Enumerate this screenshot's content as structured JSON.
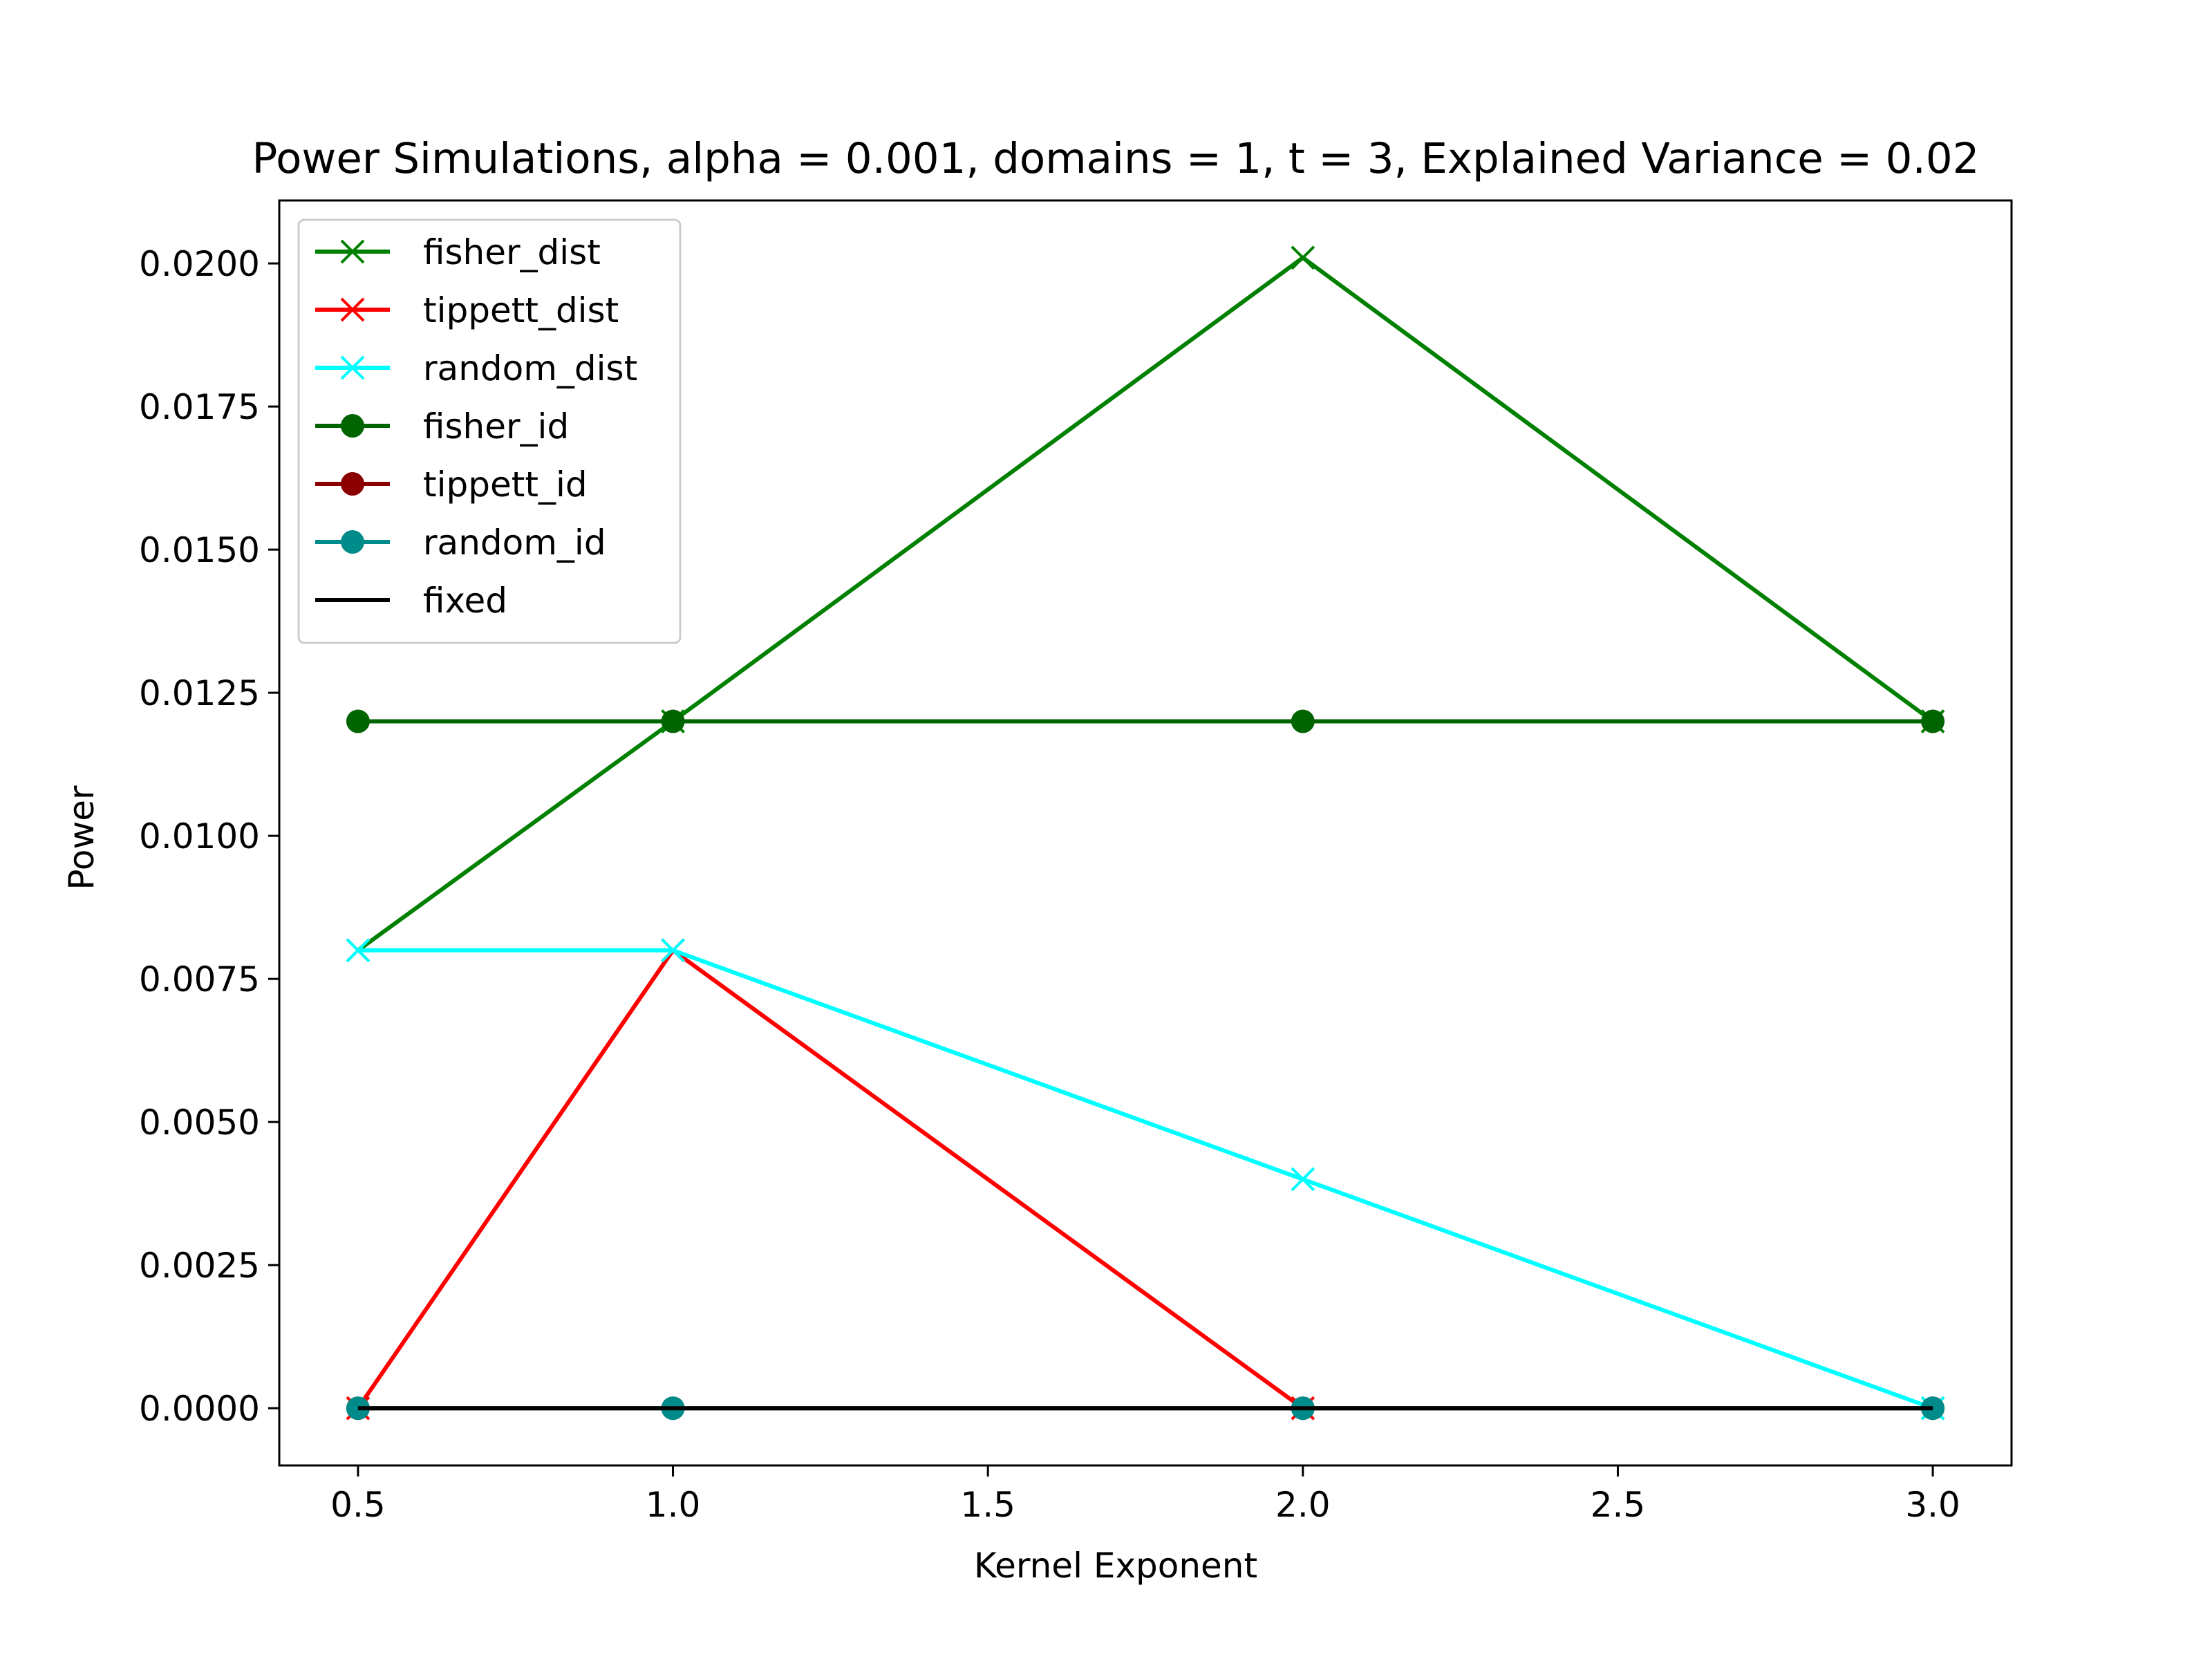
{
  "chart_data": {
    "type": "line",
    "title": "Power Simulations, alpha = 0.001, domains = 1, t = 3, Explained Variance = 0.02",
    "xlabel": "Kernel Exponent",
    "ylabel": "Power",
    "xlim": [
      0.375,
      3.125
    ],
    "ylim": [
      -0.001,
      0.0211
    ],
    "x_ticks": [
      0.5,
      1.0,
      1.5,
      2.0,
      2.5,
      3.0
    ],
    "x_tick_labels": [
      "0.5",
      "1.0",
      "1.5",
      "2.0",
      "2.5",
      "3.0"
    ],
    "y_ticks": [
      0.0,
      0.0025,
      0.005,
      0.0075,
      0.01,
      0.0125,
      0.015,
      0.0175,
      0.02
    ],
    "y_tick_labels": [
      "0.0000",
      "0.0025",
      "0.0050",
      "0.0075",
      "0.0100",
      "0.0125",
      "0.0150",
      "0.0175",
      "0.0200"
    ],
    "x": [
      0.5,
      1.0,
      2.0,
      3.0
    ],
    "grid": false,
    "legend_position": "top-left",
    "series": [
      {
        "name": "fisher_dist",
        "color": "#008000",
        "marker": "x",
        "values": [
          0.008,
          0.012,
          0.0201,
          0.012
        ]
      },
      {
        "name": "tippett_dist",
        "color": "#ff0000",
        "marker": "x",
        "values": [
          0.0,
          0.008,
          0.0,
          0.0
        ]
      },
      {
        "name": "random_dist",
        "color": "#00ffff",
        "marker": "x",
        "values": [
          0.008,
          0.008,
          0.004,
          0.0
        ]
      },
      {
        "name": "fisher_id",
        "color": "#006400",
        "marker": "circle",
        "values": [
          0.012,
          0.012,
          0.012,
          0.012
        ]
      },
      {
        "name": "tippett_id",
        "color": "#8b0000",
        "marker": "circle",
        "values": [
          0.0,
          0.0,
          0.0,
          0.0
        ]
      },
      {
        "name": "random_id",
        "color": "#008b8b",
        "marker": "circle",
        "values": [
          0.0,
          0.0,
          0.0,
          0.0
        ]
      },
      {
        "name": "fixed",
        "color": "#000000",
        "marker": "none",
        "values": [
          0.0,
          0.0,
          0.0,
          0.0
        ]
      }
    ]
  }
}
